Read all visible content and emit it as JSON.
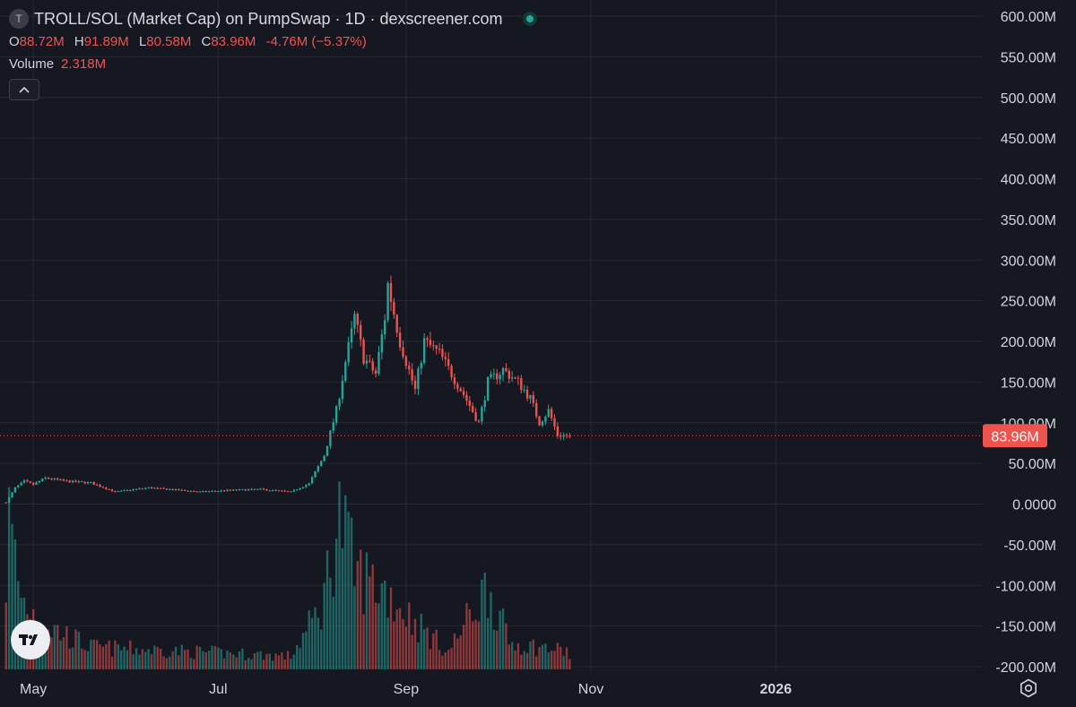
{
  "header": {
    "symbol_icon_letter": "T",
    "title": "TROLL/SOL (Market Cap) on PumpSwap · 1D · dexscreener.com",
    "status_icon": "live-status-dot-icon",
    "status_color": "#26a69a"
  },
  "ohlc": {
    "open_key": "O",
    "open": "88.72M",
    "high_key": "H",
    "high": "91.89M",
    "low_key": "L",
    "low": "80.58M",
    "close_key": "C",
    "close": "83.96M",
    "change": "-4.76M (−5.37%)"
  },
  "volume": {
    "label": "Volume",
    "value": "2.318M"
  },
  "controls": {
    "collapse_icon": "chevron-up-icon",
    "settings_icon": "gear-icon",
    "logo_icon": "tradingview-logo-icon"
  },
  "colors": {
    "background": "#161821",
    "grid": "#262933",
    "up": "#26a69a",
    "down": "#ef5350",
    "axis_text": "#d1d4dc"
  },
  "chart_data": {
    "type": "candlestick",
    "interval": "1D",
    "y_axis": {
      "ticks": [
        600,
        550,
        500,
        450,
        400,
        350,
        300,
        250,
        200,
        150,
        100,
        50,
        0,
        -50,
        -100,
        -150,
        -200
      ],
      "tick_labels": [
        "600.00M",
        "550.00M",
        "500.00M",
        "450.00M",
        "400.00M",
        "350.00M",
        "300.00M",
        "250.00M",
        "200.00M",
        "150.00M",
        "100.00M",
        "50.00M",
        "0.0000",
        "-50.00M",
        "-100.00M",
        "-150.00M",
        "-200.00M"
      ],
      "unit": "M",
      "range": [
        -200,
        600
      ]
    },
    "x_axis": {
      "labels": [
        "May",
        "Jul",
        "Sep",
        "Nov",
        "2026"
      ],
      "label_dates": [
        "2025-05-01",
        "2025-07-01",
        "2025-09-01",
        "2025-11-01",
        "2026-01-01"
      ],
      "range": [
        "2025-04-20",
        "2026-03-10"
      ]
    },
    "last_price": {
      "value": 83.96,
      "label": "83.96M"
    },
    "keypoints": [
      {
        "date": "2025-04-22",
        "close": 2
      },
      {
        "date": "2025-04-25",
        "close": 20
      },
      {
        "date": "2025-04-28",
        "close": 28
      },
      {
        "date": "2025-05-01",
        "close": 24
      },
      {
        "date": "2025-05-05",
        "close": 32
      },
      {
        "date": "2025-05-12",
        "close": 28
      },
      {
        "date": "2025-05-20",
        "close": 26
      },
      {
        "date": "2025-05-28",
        "close": 15
      },
      {
        "date": "2025-06-08",
        "close": 20
      },
      {
        "date": "2025-06-15",
        "close": 18
      },
      {
        "date": "2025-06-25",
        "close": 15
      },
      {
        "date": "2025-07-05",
        "close": 17
      },
      {
        "date": "2025-07-15",
        "close": 18
      },
      {
        "date": "2025-07-25",
        "close": 15
      },
      {
        "date": "2025-07-31",
        "close": 25
      },
      {
        "date": "2025-08-05",
        "close": 60
      },
      {
        "date": "2025-08-09",
        "close": 115
      },
      {
        "date": "2025-08-12",
        "close": 175
      },
      {
        "date": "2025-08-14",
        "close": 210
      },
      {
        "date": "2025-08-15",
        "close": 230
      },
      {
        "date": "2025-08-18",
        "close": 180
      },
      {
        "date": "2025-08-22",
        "close": 160
      },
      {
        "date": "2025-08-25",
        "close": 230
      },
      {
        "date": "2025-08-26",
        "close": 270
      },
      {
        "date": "2025-08-30",
        "close": 200
      },
      {
        "date": "2025-09-04",
        "close": 140
      },
      {
        "date": "2025-09-07",
        "close": 200
      },
      {
        "date": "2025-09-12",
        "close": 185
      },
      {
        "date": "2025-09-16",
        "close": 160
      },
      {
        "date": "2025-09-20",
        "close": 135
      },
      {
        "date": "2025-09-25",
        "close": 100
      },
      {
        "date": "2025-09-28",
        "close": 150
      },
      {
        "date": "2025-10-03",
        "close": 165
      },
      {
        "date": "2025-10-08",
        "close": 150
      },
      {
        "date": "2025-10-12",
        "close": 130
      },
      {
        "date": "2025-10-15",
        "close": 100
      },
      {
        "date": "2025-10-18",
        "close": 115
      },
      {
        "date": "2025-10-21",
        "close": 85
      },
      {
        "date": "2025-10-25",
        "close": 84
      }
    ],
    "volume_range": [
      0,
      180
    ],
    "volume_keypoints": [
      {
        "date": "2025-04-22",
        "volume": 100
      },
      {
        "date": "2025-04-23",
        "volume": 170
      },
      {
        "date": "2025-04-27",
        "volume": 80
      },
      {
        "date": "2025-05-05",
        "volume": 50
      },
      {
        "date": "2025-05-20",
        "volume": 25
      },
      {
        "date": "2025-07-25",
        "volume": 15
      },
      {
        "date": "2025-08-04",
        "volume": 70
      },
      {
        "date": "2025-08-10",
        "volume": 175
      },
      {
        "date": "2025-08-15",
        "volume": 110
      },
      {
        "date": "2025-08-25",
        "volume": 90
      },
      {
        "date": "2025-09-05",
        "volume": 50
      },
      {
        "date": "2025-09-15",
        "volume": 20
      },
      {
        "date": "2025-09-28",
        "volume": 95
      },
      {
        "date": "2025-10-05",
        "volume": 30
      },
      {
        "date": "2025-10-25",
        "volume": 20
      }
    ]
  }
}
